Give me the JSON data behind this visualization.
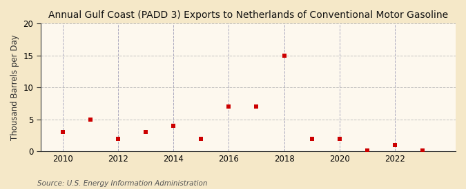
{
  "title": "Annual Gulf Coast (PADD 3) Exports to Netherlands of Conventional Motor Gasoline",
  "ylabel": "Thousand Barrels per Day",
  "source": "Source: U.S. Energy Information Administration",
  "background_color": "#f5e8c8",
  "plot_bg_color": "#fdf8ee",
  "marker_color": "#cc0000",
  "h_grid_color": "#b0b0b0",
  "v_grid_color": "#8888aa",
  "spine_color": "#333333",
  "tick_color": "#333333",
  "years": [
    2010,
    2011,
    2012,
    2013,
    2014,
    2015,
    2016,
    2017,
    2018,
    2019,
    2020,
    2021,
    2022,
    2023
  ],
  "values": [
    3.0,
    5.0,
    2.0,
    3.0,
    4.0,
    2.0,
    7.0,
    7.0,
    15.0,
    2.0,
    2.0,
    0.1,
    1.0,
    0.1
  ],
  "ylim": [
    0,
    20
  ],
  "yticks": [
    0,
    5,
    10,
    15,
    20
  ],
  "xticks": [
    2010,
    2012,
    2014,
    2016,
    2018,
    2020,
    2022
  ],
  "vgrid_years": [
    2010,
    2012,
    2014,
    2016,
    2018,
    2020,
    2022
  ],
  "title_fontsize": 10,
  "label_fontsize": 8.5,
  "tick_fontsize": 8.5,
  "source_fontsize": 7.5,
  "xlim_left": 2009.2,
  "xlim_right": 2024.2
}
